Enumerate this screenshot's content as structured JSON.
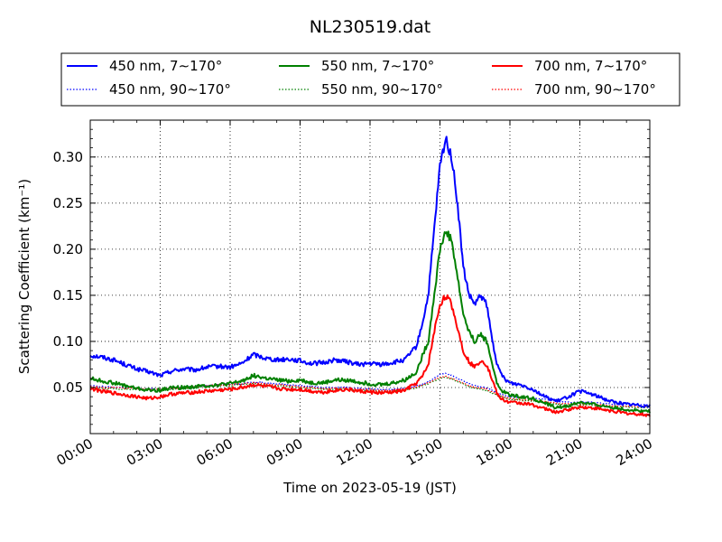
{
  "chart_data": {
    "type": "line",
    "title": "NL230519.dat",
    "xlabel": "Time on 2023-05-19 (JST)",
    "ylabel": "Scattering Coefficient (km⁻¹)",
    "xlim": [
      "2023-05-19 00:00",
      "2023-05-20 00:00"
    ],
    "ylim": [
      0.0,
      0.34
    ],
    "x_ticks": [
      "00:00",
      "03:00",
      "06:00",
      "09:00",
      "12:00",
      "15:00",
      "18:00",
      "21:00",
      "24:00"
    ],
    "y_ticks": [
      "0.05",
      "0.10",
      "0.15",
      "0.20",
      "0.25",
      "0.30"
    ],
    "grid": true,
    "legend_position": "top",
    "x_hours": [
      0,
      0.5,
      1,
      1.5,
      2,
      2.5,
      3,
      3.5,
      4,
      4.5,
      5,
      5.5,
      6,
      6.5,
      7,
      7.5,
      8,
      8.5,
      9,
      9.5,
      10,
      10.5,
      11,
      11.5,
      12,
      12.5,
      13,
      13.5,
      14,
      14.25,
      14.5,
      14.75,
      15,
      15.25,
      15.5,
      15.75,
      16,
      16.25,
      16.5,
      16.75,
      17,
      17.25,
      17.5,
      17.75,
      18,
      18.5,
      19,
      19.5,
      20,
      20.5,
      21,
      21.5,
      22,
      22.5,
      23,
      23.5,
      24
    ],
    "series": [
      {
        "name": "450 nm, 7∼170°",
        "color": "#0000ff",
        "style": "solid",
        "values": [
          0.085,
          0.083,
          0.08,
          0.075,
          0.07,
          0.067,
          0.063,
          0.068,
          0.07,
          0.069,
          0.072,
          0.073,
          0.072,
          0.076,
          0.086,
          0.082,
          0.08,
          0.081,
          0.079,
          0.076,
          0.077,
          0.08,
          0.078,
          0.075,
          0.076,
          0.075,
          0.077,
          0.08,
          0.095,
          0.12,
          0.15,
          0.22,
          0.29,
          0.32,
          0.3,
          0.25,
          0.18,
          0.15,
          0.14,
          0.15,
          0.14,
          0.1,
          0.07,
          0.06,
          0.055,
          0.053,
          0.048,
          0.04,
          0.035,
          0.04,
          0.046,
          0.043,
          0.038,
          0.034,
          0.032,
          0.031,
          0.03
        ]
      },
      {
        "name": "550 nm, 7∼170°",
        "color": "#008000",
        "style": "solid",
        "values": [
          0.06,
          0.057,
          0.055,
          0.052,
          0.049,
          0.047,
          0.047,
          0.05,
          0.05,
          0.051,
          0.052,
          0.053,
          0.054,
          0.057,
          0.063,
          0.06,
          0.058,
          0.057,
          0.058,
          0.055,
          0.055,
          0.058,
          0.058,
          0.056,
          0.054,
          0.053,
          0.055,
          0.058,
          0.067,
          0.085,
          0.1,
          0.15,
          0.2,
          0.22,
          0.21,
          0.17,
          0.13,
          0.11,
          0.1,
          0.108,
          0.1,
          0.075,
          0.05,
          0.045,
          0.042,
          0.04,
          0.038,
          0.033,
          0.028,
          0.03,
          0.034,
          0.032,
          0.03,
          0.028,
          0.026,
          0.025,
          0.024
        ]
      },
      {
        "name": "700 nm, 7∼170°",
        "color": "#ff0000",
        "style": "solid",
        "values": [
          0.049,
          0.046,
          0.044,
          0.042,
          0.04,
          0.038,
          0.04,
          0.043,
          0.044,
          0.045,
          0.046,
          0.047,
          0.048,
          0.05,
          0.053,
          0.051,
          0.049,
          0.048,
          0.048,
          0.046,
          0.045,
          0.047,
          0.048,
          0.046,
          0.045,
          0.044,
          0.045,
          0.047,
          0.055,
          0.062,
          0.075,
          0.11,
          0.14,
          0.15,
          0.14,
          0.115,
          0.09,
          0.078,
          0.072,
          0.08,
          0.075,
          0.058,
          0.04,
          0.036,
          0.034,
          0.033,
          0.031,
          0.027,
          0.023,
          0.026,
          0.029,
          0.028,
          0.026,
          0.024,
          0.022,
          0.021,
          0.02
        ]
      },
      {
        "name": "450 nm, 90∼170°",
        "color": "#0000ff",
        "style": "dotted",
        "values": [
          0.052,
          0.051,
          0.05,
          0.05,
          0.049,
          0.049,
          0.048,
          0.049,
          0.05,
          0.051,
          0.052,
          0.053,
          0.054,
          0.054,
          0.056,
          0.055,
          0.054,
          0.053,
          0.052,
          0.051,
          0.05,
          0.05,
          0.05,
          0.049,
          0.048,
          0.048,
          0.048,
          0.049,
          0.052,
          0.054,
          0.056,
          0.06,
          0.064,
          0.065,
          0.063,
          0.06,
          0.057,
          0.054,
          0.052,
          0.051,
          0.05,
          0.047,
          0.044,
          0.042,
          0.04,
          0.039,
          0.038,
          0.037,
          0.035,
          0.034,
          0.034,
          0.034,
          0.033,
          0.032,
          0.032,
          0.031,
          0.031
        ]
      },
      {
        "name": "550 nm, 90∼170°",
        "color": "#008000",
        "style": "dotted",
        "values": [
          0.05,
          0.049,
          0.049,
          0.048,
          0.048,
          0.047,
          0.047,
          0.048,
          0.049,
          0.05,
          0.051,
          0.052,
          0.052,
          0.053,
          0.054,
          0.053,
          0.052,
          0.051,
          0.05,
          0.049,
          0.048,
          0.048,
          0.048,
          0.047,
          0.047,
          0.046,
          0.046,
          0.047,
          0.05,
          0.052,
          0.054,
          0.057,
          0.06,
          0.061,
          0.059,
          0.056,
          0.054,
          0.051,
          0.049,
          0.048,
          0.047,
          0.044,
          0.041,
          0.039,
          0.037,
          0.036,
          0.035,
          0.034,
          0.032,
          0.031,
          0.031,
          0.031,
          0.03,
          0.029,
          0.029,
          0.028,
          0.028
        ]
      },
      {
        "name": "700 nm, 90∼170°",
        "color": "#ff0000",
        "style": "dotted",
        "values": [
          0.051,
          0.05,
          0.05,
          0.049,
          0.049,
          0.048,
          0.048,
          0.049,
          0.05,
          0.051,
          0.052,
          0.053,
          0.053,
          0.054,
          0.055,
          0.054,
          0.053,
          0.052,
          0.051,
          0.05,
          0.049,
          0.049,
          0.049,
          0.048,
          0.048,
          0.047,
          0.047,
          0.048,
          0.051,
          0.053,
          0.055,
          0.058,
          0.061,
          0.062,
          0.06,
          0.057,
          0.055,
          0.052,
          0.05,
          0.049,
          0.048,
          0.045,
          0.042,
          0.04,
          0.038,
          0.037,
          0.036,
          0.035,
          0.033,
          0.032,
          0.032,
          0.032,
          0.031,
          0.03,
          0.03,
          0.029,
          0.029
        ]
      }
    ]
  }
}
